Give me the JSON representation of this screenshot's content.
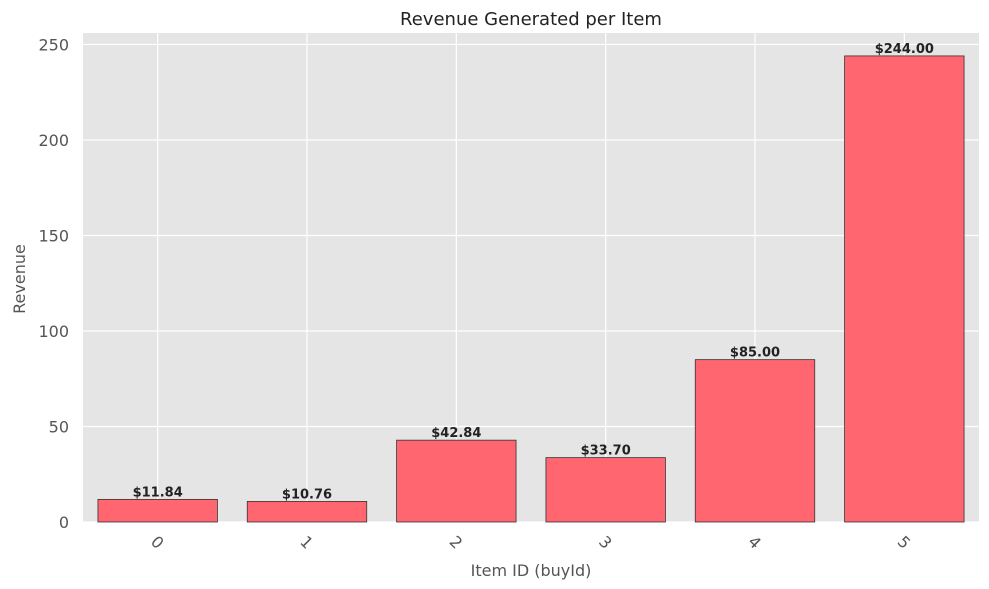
{
  "chart_data": {
    "type": "bar",
    "title": "Revenue Generated per Item",
    "xlabel": "Item ID (buyId)",
    "ylabel": "Revenue",
    "categories": [
      "0",
      "1",
      "2",
      "3",
      "4",
      "5"
    ],
    "values": [
      11.84,
      10.76,
      42.84,
      33.7,
      85.0,
      244.0
    ],
    "value_labels": [
      "$11.84",
      "$10.76",
      "$42.84",
      "$33.70",
      "$85.00",
      "$244.00"
    ],
    "ylim": [
      0,
      256
    ],
    "yticks": [
      0,
      50,
      100,
      150,
      200,
      250
    ],
    "grid": true,
    "colors": {
      "bar_fill": "#ff6670",
      "bar_edge": "#333333",
      "plot_bg": "#e5e5e5",
      "grid": "#ffffff"
    }
  }
}
